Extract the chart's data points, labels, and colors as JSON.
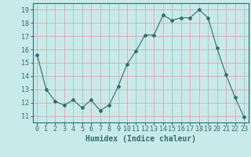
{
  "x": [
    0,
    1,
    2,
    3,
    4,
    5,
    6,
    7,
    8,
    9,
    10,
    11,
    12,
    13,
    14,
    15,
    16,
    17,
    18,
    19,
    20,
    21,
    22,
    23
  ],
  "y": [
    15.6,
    13.0,
    12.1,
    11.8,
    12.2,
    11.6,
    12.2,
    11.4,
    11.8,
    13.2,
    14.9,
    15.9,
    17.1,
    17.1,
    18.6,
    18.2,
    18.4,
    18.4,
    19.0,
    18.4,
    16.1,
    14.1,
    12.4,
    10.9
  ],
  "line_color": "#2e6e6e",
  "marker": "D",
  "marker_size": 2.0,
  "bg_color": "#c8eaea",
  "grid_color": "#d4a0a0",
  "xlabel": "Humidex (Indice chaleur)",
  "xlim": [
    -0.5,
    23.5
  ],
  "ylim": [
    10.5,
    19.5
  ],
  "yticks": [
    11,
    12,
    13,
    14,
    15,
    16,
    17,
    18,
    19
  ],
  "xticks": [
    0,
    1,
    2,
    3,
    4,
    5,
    6,
    7,
    8,
    9,
    10,
    11,
    12,
    13,
    14,
    15,
    16,
    17,
    18,
    19,
    20,
    21,
    22,
    23
  ],
  "tick_color": "#2e6e6e",
  "label_fontsize": 7,
  "tick_fontsize": 6
}
